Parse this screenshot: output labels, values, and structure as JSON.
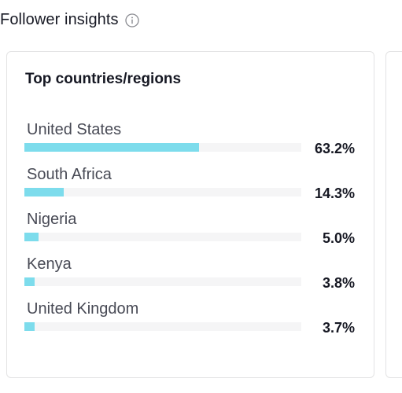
{
  "header": {
    "title": "Follower insights",
    "info_icon": "info-circle-icon"
  },
  "card": {
    "title": "Top countries/regions",
    "bar_color": "#7ddcec",
    "track_color": "#f5f5f6",
    "countries": [
      {
        "name": "United States",
        "value_label": "63.2%",
        "percent": 63.2
      },
      {
        "name": "South Africa",
        "value_label": "14.3%",
        "percent": 14.3
      },
      {
        "name": "Nigeria",
        "value_label": "5.0%",
        "percent": 5.0
      },
      {
        "name": "Kenya",
        "value_label": "3.8%",
        "percent": 3.8
      },
      {
        "name": "United Kingdom",
        "value_label": "3.7%",
        "percent": 3.7
      }
    ]
  }
}
